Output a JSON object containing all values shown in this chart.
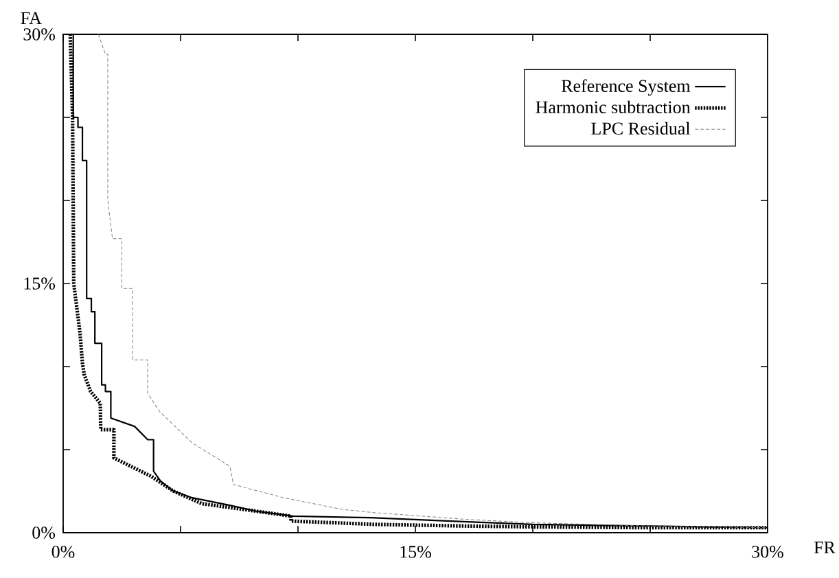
{
  "chart_data": {
    "type": "line",
    "xlabel": "FR",
    "ylabel": "FA",
    "xlim": [
      0,
      30
    ],
    "ylim": [
      0,
      30
    ],
    "xticks": [
      {
        "value": 0,
        "label": "0%"
      },
      {
        "value": 5,
        "label": null
      },
      {
        "value": 10,
        "label": null
      },
      {
        "value": 15,
        "label": "15%"
      },
      {
        "value": 20,
        "label": null
      },
      {
        "value": 25,
        "label": null
      },
      {
        "value": 30,
        "label": "30%"
      }
    ],
    "yticks": [
      {
        "value": 0,
        "label": "0%"
      },
      {
        "value": 5,
        "label": null
      },
      {
        "value": 10,
        "label": null
      },
      {
        "value": 15,
        "label": "15%"
      },
      {
        "value": 20,
        "label": null
      },
      {
        "value": 25,
        "label": null
      },
      {
        "value": 30,
        "label": "30%"
      }
    ],
    "legend": "top right",
    "marker": "none",
    "series": [
      {
        "name": "Reference System",
        "color": "#000000",
        "line_style": "solid",
        "x": [
          0.43,
          0.43,
          0.63,
          0.63,
          0.82,
          0.82,
          1.0,
          1.0,
          1.2,
          1.2,
          1.35,
          1.35,
          1.64,
          1.64,
          1.8,
          1.8,
          2.03,
          2.03,
          3.04,
          3.6,
          3.85,
          3.85,
          4.15,
          4.7,
          5.5,
          7.1,
          8.2,
          9.8,
          13.1,
          17.2,
          20,
          25,
          30
        ],
        "values": [
          30,
          25,
          25,
          24.4,
          24.4,
          22.4,
          22.4,
          14.1,
          14.1,
          13.3,
          13.3,
          11.4,
          11.4,
          8.9,
          8.9,
          8.5,
          8.5,
          6.9,
          6.4,
          5.6,
          5.6,
          3.7,
          3.1,
          2.5,
          2.1,
          1.65,
          1.3,
          1.0,
          0.9,
          0.66,
          0.5,
          0.4,
          0.3
        ]
      },
      {
        "name": "Harmonic subtraction",
        "color": "#000000",
        "line_style": "dotted",
        "x": [
          0.3,
          0.4,
          0.45,
          0.72,
          0.82,
          0.9,
          1.17,
          1.58,
          1.6,
          2.16,
          2.16,
          3.74,
          4.7,
          5.9,
          8.2,
          9.7,
          9.7,
          13.3,
          17.2,
          20,
          25,
          30
        ],
        "values": [
          30,
          25,
          15,
          12,
          10.2,
          9.5,
          8.5,
          7.8,
          6.2,
          6.2,
          4.5,
          3.4,
          2.5,
          1.75,
          1.3,
          1.0,
          0.7,
          0.5,
          0.4,
          0.35,
          0.3,
          0.3
        ]
      },
      {
        "name": "LPC Residual",
        "color": "#808080",
        "line_style": "dashed",
        "x": [
          1.5,
          1.8,
          1.9,
          1.9,
          2.1,
          2.5,
          2.5,
          2.96,
          2.96,
          3.6,
          3.6,
          4.1,
          5.5,
          7.1,
          7.25,
          9.4,
          11.9,
          13.3,
          17.2,
          20,
          25,
          30
        ],
        "values": [
          30,
          28.8,
          28.8,
          20,
          17.7,
          17.7,
          14.7,
          14.7,
          10.4,
          10.4,
          8.4,
          7.3,
          5.4,
          4.0,
          2.9,
          2.1,
          1.4,
          1.2,
          0.8,
          0.6,
          0.4,
          0.3
        ]
      }
    ]
  }
}
